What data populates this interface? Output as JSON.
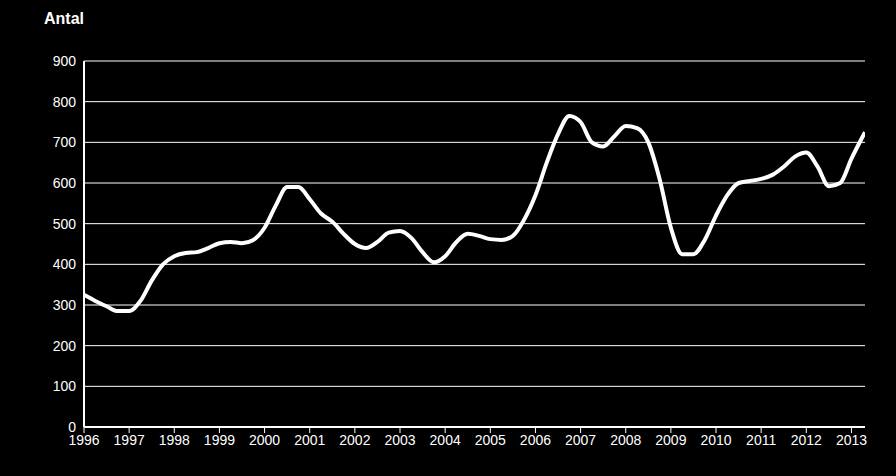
{
  "chart_data": {
    "type": "line",
    "ylabel": "Antal",
    "color": "#ffffff",
    "grid": true,
    "x": [
      1996.0,
      1996.25,
      1996.5,
      1996.75,
      1997.0,
      1997.25,
      1997.5,
      1997.75,
      1998.0,
      1998.25,
      1998.5,
      1998.75,
      1999.0,
      1999.25,
      1999.5,
      1999.75,
      2000.0,
      2000.25,
      2000.5,
      2000.75,
      2001.0,
      2001.25,
      2001.5,
      2001.75,
      2002.0,
      2002.25,
      2002.5,
      2002.75,
      2003.0,
      2003.25,
      2003.5,
      2003.75,
      2004.0,
      2004.25,
      2004.5,
      2004.75,
      2005.0,
      2005.25,
      2005.5,
      2005.75,
      2006.0,
      2006.25,
      2006.5,
      2006.75,
      2007.0,
      2007.25,
      2007.5,
      2007.75,
      2008.0,
      2008.25,
      2008.5,
      2008.75,
      2009.0,
      2009.25,
      2009.5,
      2009.75,
      2010.0,
      2010.25,
      2010.5,
      2010.75,
      2011.0,
      2011.25,
      2011.5,
      2011.75,
      2012.0,
      2012.25,
      2012.5,
      2012.75,
      2013.0,
      2013.3
    ],
    "values": [
      325,
      310,
      297,
      285,
      285,
      310,
      360,
      400,
      420,
      428,
      430,
      440,
      452,
      455,
      452,
      460,
      490,
      545,
      590,
      590,
      560,
      525,
      505,
      475,
      450,
      440,
      455,
      478,
      482,
      465,
      430,
      405,
      420,
      455,
      475,
      470,
      462,
      460,
      470,
      510,
      570,
      650,
      720,
      765,
      750,
      700,
      690,
      715,
      740,
      735,
      700,
      610,
      490,
      425,
      425,
      460,
      520,
      570,
      600,
      605,
      610,
      620,
      640,
      665,
      675,
      640,
      592,
      600,
      660,
      725
    ],
    "xlim": [
      1996,
      2013.3
    ],
    "xticks": [
      1996,
      1997,
      1998,
      1999,
      2000,
      2001,
      2002,
      2003,
      2004,
      2005,
      2006,
      2007,
      2008,
      2009,
      2010,
      2011,
      2012,
      2013
    ],
    "ylim": [
      0,
      900
    ],
    "yticks": [
      0,
      100,
      200,
      300,
      400,
      500,
      600,
      700,
      800,
      900
    ]
  }
}
